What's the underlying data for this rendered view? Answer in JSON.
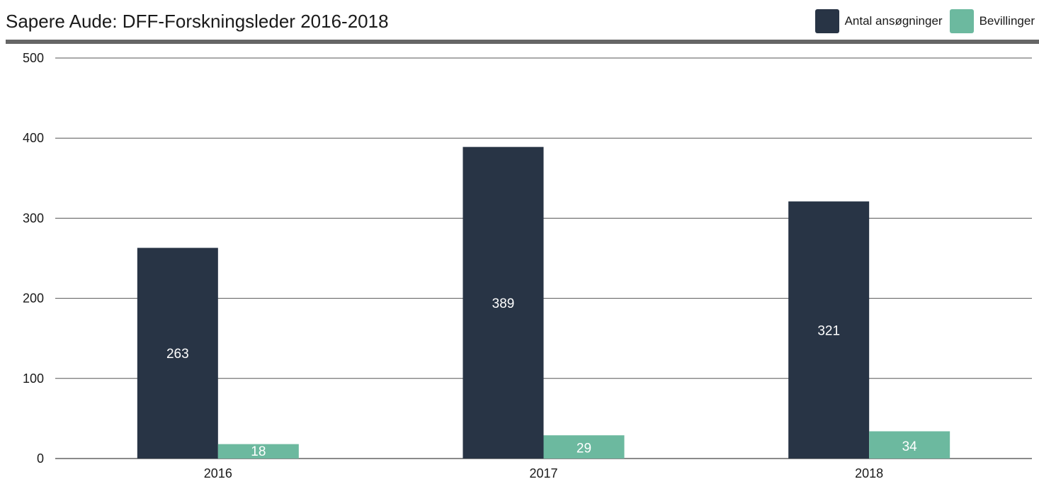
{
  "chart_data": {
    "type": "bar",
    "title": "Sapere Aude: DFF-Forskningsleder 2016-2018",
    "categories": [
      "2016",
      "2017",
      "2018"
    ],
    "series": [
      {
        "name": "Antal ansøgninger",
        "values": [
          263,
          389,
          321
        ],
        "color": "#283445"
      },
      {
        "name": "Bevillinger",
        "values": [
          18,
          29,
          34
        ],
        "color": "#6cb99f"
      }
    ],
    "ylim": [
      0,
      500
    ],
    "yticks": [
      0,
      100,
      200,
      300,
      400,
      500
    ],
    "grid": true,
    "legend_position": "top-right",
    "data_labels": true
  }
}
